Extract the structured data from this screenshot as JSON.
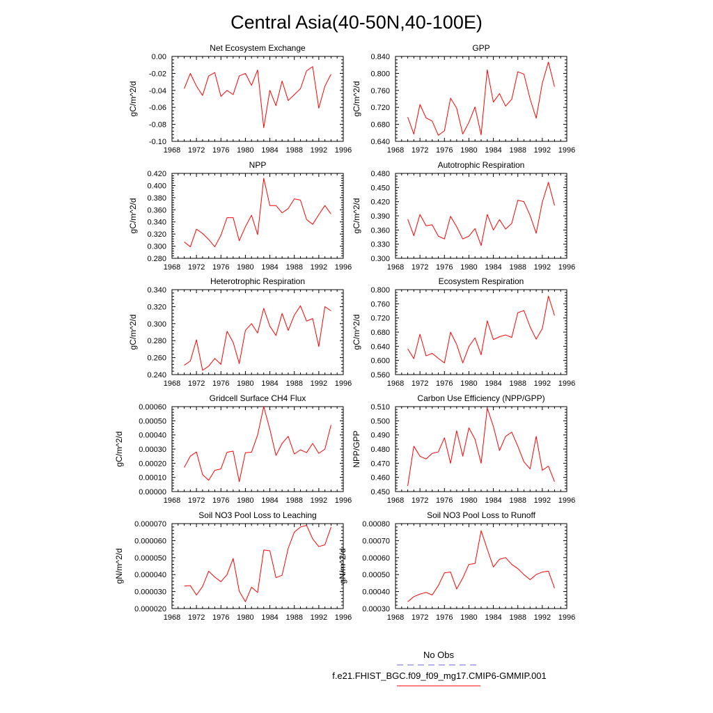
{
  "figure": {
    "title": "Central Asia(40-50N,40-100E)",
    "legend": {
      "obs_label": "No Obs",
      "obs_color": "#6666dd",
      "model_label": "f.e21.FHIST_BGC.f09_f09_mg17.CMIP6-GMMIP.001",
      "model_color": "#ff0000"
    }
  },
  "chart_data": [
    {
      "type": "line",
      "title": "Net Ecosystem Exchange",
      "xlabel": "",
      "ylabel": "gC/m^2/d",
      "xlim": [
        1968,
        1996
      ],
      "ylim": [
        -0.1,
        0.0
      ],
      "xticks": [
        1968,
        1972,
        1976,
        1980,
        1984,
        1988,
        1992,
        1996
      ],
      "yticks": [
        "-0.10",
        "-0.08",
        "-0.06",
        "-0.04",
        "-0.02",
        "0.00"
      ],
      "x": [
        1970,
        1971,
        1972,
        1973,
        1974,
        1975,
        1976,
        1977,
        1978,
        1979,
        1980,
        1981,
        1982,
        1983,
        1984,
        1985,
        1986,
        1987,
        1988,
        1989,
        1990,
        1991,
        1992,
        1993,
        1994
      ],
      "series": [
        {
          "name": "f.e21.FHIST_BGC.f09_f09_mg17.CMIP6-GMMIP.001",
          "values": [
            -0.038,
            -0.02,
            -0.035,
            -0.046,
            -0.023,
            -0.019,
            -0.047,
            -0.04,
            -0.045,
            -0.023,
            -0.02,
            -0.034,
            -0.016,
            -0.084,
            -0.04,
            -0.058,
            -0.029,
            -0.052,
            -0.045,
            -0.038,
            -0.017,
            -0.012,
            -0.061,
            -0.035,
            -0.021
          ]
        }
      ]
    },
    {
      "type": "line",
      "title": "GPP",
      "xlabel": "",
      "ylabel": "gC/m^2/d",
      "xlim": [
        1968,
        1996
      ],
      "ylim": [
        0.63,
        0.84
      ],
      "xticks": [
        1968,
        1972,
        1976,
        1980,
        1984,
        1988,
        1992,
        1996
      ],
      "yticks": [
        "0.640",
        "0.680",
        "0.720",
        "0.760",
        "0.800",
        "0.840"
      ],
      "x": [
        1970,
        1971,
        1972,
        1973,
        1974,
        1975,
        1976,
        1977,
        1978,
        1979,
        1980,
        1981,
        1982,
        1983,
        1984,
        1985,
        1986,
        1987,
        1988,
        1989,
        1990,
        1991,
        1992,
        1993,
        1994
      ],
      "series": [
        {
          "name": "f.e21.FHIST_BGC.f09_f09_mg17.CMIP6-GMMIP.001",
          "values": [
            0.69,
            0.648,
            0.721,
            0.688,
            0.68,
            0.645,
            0.656,
            0.737,
            0.712,
            0.648,
            0.677,
            0.715,
            0.646,
            0.807,
            0.727,
            0.748,
            0.717,
            0.734,
            0.802,
            0.796,
            0.735,
            0.687,
            0.774,
            0.826,
            0.765
          ]
        }
      ]
    },
    {
      "type": "line",
      "title": "NPP",
      "xlabel": "",
      "ylabel": "gC/m^2/d",
      "xlim": [
        1968,
        1996
      ],
      "ylim": [
        0.28,
        0.42
      ],
      "xticks": [
        1968,
        1972,
        1976,
        1980,
        1984,
        1988,
        1992,
        1996
      ],
      "yticks": [
        "0.280",
        "0.300",
        "0.320",
        "0.340",
        "0.360",
        "0.380",
        "0.400",
        "0.420"
      ],
      "x": [
        1970,
        1971,
        1972,
        1973,
        1974,
        1975,
        1976,
        1977,
        1978,
        1979,
        1980,
        1981,
        1982,
        1983,
        1984,
        1985,
        1986,
        1987,
        1988,
        1989,
        1990,
        1991,
        1992,
        1993,
        1994
      ],
      "series": [
        {
          "name": "f.e21.FHIST_BGC.f09_f09_mg17.CMIP6-GMMIP.001",
          "values": [
            0.307,
            0.299,
            0.328,
            0.321,
            0.311,
            0.299,
            0.318,
            0.347,
            0.347,
            0.309,
            0.332,
            0.351,
            0.319,
            0.412,
            0.367,
            0.367,
            0.355,
            0.362,
            0.378,
            0.376,
            0.344,
            0.336,
            0.352,
            0.367,
            0.353
          ]
        }
      ]
    },
    {
      "type": "line",
      "title": "Autotrophic Respiration",
      "xlabel": "",
      "ylabel": "gC/m^2/d",
      "xlim": [
        1968,
        1996
      ],
      "ylim": [
        0.3,
        0.48
      ],
      "xticks": [
        1968,
        1972,
        1976,
        1980,
        1984,
        1988,
        1992,
        1996
      ],
      "yticks": [
        "0.300",
        "0.330",
        "0.360",
        "0.390",
        "0.420",
        "0.450",
        "0.480"
      ],
      "x": [
        1970,
        1971,
        1972,
        1973,
        1974,
        1975,
        1976,
        1977,
        1978,
        1979,
        1980,
        1981,
        1982,
        1983,
        1984,
        1985,
        1986,
        1987,
        1988,
        1989,
        1990,
        1991,
        1992,
        1993,
        1994
      ],
      "series": [
        {
          "name": "f.e21.FHIST_BGC.f09_f09_mg17.CMIP6-GMMIP.001",
          "values": [
            0.383,
            0.348,
            0.393,
            0.369,
            0.371,
            0.347,
            0.341,
            0.389,
            0.367,
            0.341,
            0.347,
            0.363,
            0.327,
            0.393,
            0.36,
            0.382,
            0.362,
            0.374,
            0.423,
            0.42,
            0.391,
            0.353,
            0.419,
            0.461,
            0.412
          ]
        }
      ]
    },
    {
      "type": "line",
      "title": "Heterotrophic Respiration",
      "xlabel": "",
      "ylabel": "gC/m^2/d",
      "xlim": [
        1968,
        1996
      ],
      "ylim": [
        0.24,
        0.34
      ],
      "xticks": [
        1968,
        1972,
        1976,
        1980,
        1984,
        1988,
        1992,
        1996
      ],
      "yticks": [
        "0.240",
        "0.260",
        "0.280",
        "0.300",
        "0.320",
        "0.340"
      ],
      "x": [
        1970,
        1971,
        1972,
        1973,
        1974,
        1975,
        1976,
        1977,
        1978,
        1979,
        1980,
        1981,
        1982,
        1983,
        1984,
        1985,
        1986,
        1987,
        1988,
        1989,
        1990,
        1991,
        1992,
        1993,
        1994
      ],
      "series": [
        {
          "name": "f.e21.FHIST_BGC.f09_f09_mg17.CMIP6-GMMIP.001",
          "values": [
            0.251,
            0.256,
            0.281,
            0.245,
            0.25,
            0.259,
            0.252,
            0.291,
            0.278,
            0.253,
            0.292,
            0.3,
            0.289,
            0.318,
            0.297,
            0.286,
            0.312,
            0.292,
            0.31,
            0.321,
            0.303,
            0.306,
            0.273,
            0.32,
            0.315
          ]
        }
      ]
    },
    {
      "type": "line",
      "title": "Ecosystem Respiration",
      "xlabel": "",
      "ylabel": "gC/m^2/d",
      "xlim": [
        1968,
        1996
      ],
      "ylim": [
        0.56,
        0.8
      ],
      "xticks": [
        1968,
        1972,
        1976,
        1980,
        1984,
        1988,
        1992,
        1996
      ],
      "yticks": [
        "0.560",
        "0.600",
        "0.640",
        "0.680",
        "0.720",
        "0.760",
        "0.800"
      ],
      "x": [
        1970,
        1971,
        1972,
        1973,
        1974,
        1975,
        1976,
        1977,
        1978,
        1979,
        1980,
        1981,
        1982,
        1983,
        1984,
        1985,
        1986,
        1987,
        1988,
        1989,
        1990,
        1991,
        1992,
        1993,
        1994
      ],
      "series": [
        {
          "name": "f.e21.FHIST_BGC.f09_f09_mg17.CMIP6-GMMIP.001",
          "values": [
            0.633,
            0.605,
            0.674,
            0.613,
            0.62,
            0.606,
            0.593,
            0.68,
            0.645,
            0.593,
            0.639,
            0.664,
            0.616,
            0.712,
            0.659,
            0.667,
            0.672,
            0.665,
            0.735,
            0.741,
            0.695,
            0.66,
            0.69,
            0.782,
            0.727
          ]
        }
      ]
    },
    {
      "type": "line",
      "title": "Gridcell Surface CH4 Flux",
      "xlabel": "",
      "ylabel": "gC/m^2/d",
      "xlim": [
        1968,
        1996
      ],
      "ylim": [
        0.0,
        0.0006
      ],
      "xticks": [
        1968,
        1972,
        1976,
        1980,
        1984,
        1988,
        1992,
        1996
      ],
      "yticks": [
        "0.00000",
        "0.00010",
        "0.00020",
        "0.00030",
        "0.00040",
        "0.00050",
        "0.00060"
      ],
      "x": [
        1970,
        1971,
        1972,
        1973,
        1974,
        1975,
        1976,
        1977,
        1978,
        1979,
        1980,
        1981,
        1982,
        1983,
        1984,
        1985,
        1986,
        1987,
        1988,
        1989,
        1990,
        1991,
        1992,
        1993,
        1994
      ],
      "series": [
        {
          "name": "f.e21.FHIST_BGC.f09_f09_mg17.CMIP6-GMMIP.001",
          "values": [
            0.00017,
            0.00025,
            0.00028,
            0.00012,
            8e-05,
            0.00015,
            0.00016,
            0.000278,
            0.000285,
            7e-05,
            0.000275,
            0.000278,
            0.0004,
            0.0006,
            0.00044,
            0.000255,
            0.00034,
            0.00039,
            0.000265,
            0.000295,
            0.000275,
            0.00034,
            0.00027,
            0.0003,
            0.00047
          ]
        }
      ]
    },
    {
      "type": "line",
      "title": "Carbon Use Efficiency (NPP/GPP)",
      "xlabel": "",
      "ylabel": "NPP/GPP",
      "xlim": [
        1968,
        1996
      ],
      "ylim": [
        0.45,
        0.51
      ],
      "xticks": [
        1968,
        1972,
        1976,
        1980,
        1984,
        1988,
        1992,
        1996
      ],
      "yticks": [
        "0.450",
        "0.460",
        "0.470",
        "0.480",
        "0.490",
        "0.500",
        "0.510"
      ],
      "x": [
        1970,
        1971,
        1972,
        1973,
        1974,
        1975,
        1976,
        1977,
        1978,
        1979,
        1980,
        1981,
        1982,
        1983,
        1984,
        1985,
        1986,
        1987,
        1988,
        1989,
        1990,
        1991,
        1992,
        1993,
        1994
      ],
      "series": [
        {
          "name": "f.e21.FHIST_BGC.f09_f09_mg17.CMIP6-GMMIP.001",
          "values": [
            0.454,
            0.482,
            0.475,
            0.473,
            0.477,
            0.478,
            0.488,
            0.47,
            0.493,
            0.475,
            0.495,
            0.487,
            0.47,
            0.509,
            0.496,
            0.479,
            0.489,
            0.492,
            0.482,
            0.471,
            0.466,
            0.489,
            0.465,
            0.468,
            0.457
          ]
        }
      ]
    },
    {
      "type": "line",
      "title": "Soil NO3 Pool Loss to Leaching",
      "xlabel": "",
      "ylabel": "gN/m^2/d",
      "xlim": [
        1968,
        1996
      ],
      "ylim": [
        2e-05,
        7e-05
      ],
      "xticks": [
        1968,
        1972,
        1976,
        1980,
        1984,
        1988,
        1992,
        1996
      ],
      "yticks": [
        "0.000020",
        "0.000030",
        "0.000040",
        "0.000050",
        "0.000060",
        "0.000070"
      ],
      "x": [
        1970,
        1971,
        1972,
        1973,
        1974,
        1975,
        1976,
        1977,
        1978,
        1979,
        1980,
        1981,
        1982,
        1983,
        1984,
        1985,
        1986,
        1987,
        1988,
        1989,
        1990,
        1991,
        1992,
        1993,
        1994
      ],
      "series": [
        {
          "name": "f.e21.FHIST_BGC.f09_f09_mg17.CMIP6-GMMIP.001",
          "values": [
            3.32e-05,
            3.35e-05,
            2.8e-05,
            3.3e-05,
            4.2e-05,
            3.85e-05,
            3.58e-05,
            4e-05,
            4.95e-05,
            3.02e-05,
            2.4e-05,
            3.26e-05,
            2.95e-05,
            5.45e-05,
            5.4e-05,
            3.82e-05,
            3.96e-05,
            5.55e-05,
            6.5e-05,
            6.8e-05,
            6.9e-05,
            6.1e-05,
            5.65e-05,
            5.75e-05,
            6.8e-05
          ]
        }
      ]
    },
    {
      "type": "line",
      "title": "Soil NO3 Pool Loss to Runoff",
      "xlabel": "",
      "ylabel": "gN/m^2/d",
      "xlim": [
        1968,
        1996
      ],
      "ylim": [
        0.0003,
        0.0008
      ],
      "xticks": [
        1968,
        1972,
        1976,
        1980,
        1984,
        1988,
        1992,
        1996
      ],
      "yticks": [
        "0.00030",
        "0.00040",
        "0.00050",
        "0.00060",
        "0.00070",
        "0.00080"
      ],
      "x": [
        1970,
        1971,
        1972,
        1973,
        1974,
        1975,
        1976,
        1977,
        1978,
        1979,
        1980,
        1981,
        1982,
        1983,
        1984,
        1985,
        1986,
        1987,
        1988,
        1989,
        1990,
        1991,
        1992,
        1993,
        1994
      ],
      "series": [
        {
          "name": "f.e21.FHIST_BGC.f09_f09_mg17.CMIP6-GMMIP.001",
          "values": [
            0.00034,
            0.00037,
            0.000385,
            0.000395,
            0.00038,
            0.000435,
            0.00051,
            0.000515,
            0.000415,
            0.00048,
            0.00056,
            0.000565,
            0.000758,
            0.00065,
            0.000545,
            0.00059,
            0.0006,
            0.00056,
            0.000535,
            0.0005,
            0.00047,
            0.0005,
            0.000515,
            0.00052,
            0.00042
          ]
        }
      ]
    }
  ]
}
